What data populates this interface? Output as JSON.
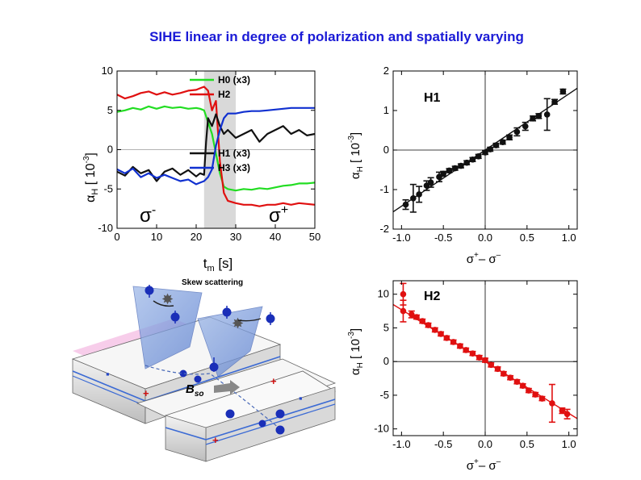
{
  "slide": {
    "title": "SIHE linear in degree of polarization and spatially varying"
  },
  "colors": {
    "H0": "#22dd22",
    "H2": "#e01010",
    "H1": "#111111",
    "H3": "#1030d0",
    "dev_blue": "#2548c8",
    "dev_pink": "#f4b8e0",
    "shade": "#cfcfcf"
  },
  "chart_data": [
    {
      "id": "time-trace",
      "type": "line",
      "xlabel": "t",
      "xlabel_sub": "m",
      "xlabel_unit": " [s]",
      "ylabel": "α",
      "ylabel_sub": "H",
      "ylabel_unit": " [ 10",
      "ylabel_exp": "-3",
      "ylabel_close": "]",
      "xlim": [
        0,
        50
      ],
      "ylim": [
        -10,
        10
      ],
      "xticks": [
        "0",
        "10",
        "20",
        "30",
        "40",
        "50"
      ],
      "yticks": [
        "-10",
        "-5",
        "0",
        "5",
        "10"
      ],
      "shaded_range": [
        22,
        30
      ],
      "annotations": {
        "left": "σ",
        "left_sup": "-",
        "right": "σ",
        "right_sup": "+"
      },
      "legend": [
        "H0 (x3)",
        "H2",
        "H1 (x3)",
        "H3 (x3)"
      ],
      "series": [
        {
          "name": "H0 (x3)",
          "x": [
            0,
            2,
            4,
            6,
            8,
            10,
            12,
            14,
            16,
            18,
            20,
            21,
            22,
            23,
            24,
            25,
            26,
            27,
            28,
            30,
            32,
            34,
            36,
            38,
            40,
            42,
            44,
            46,
            48,
            50
          ],
          "values": [
            4.8,
            5.0,
            5.3,
            5.1,
            5.5,
            5.2,
            5.5,
            5.3,
            5.4,
            5.2,
            5.3,
            5.2,
            5.0,
            3.5,
            2,
            -0.5,
            -3,
            -4.7,
            -5,
            -5.2,
            -5,
            -5.1,
            -4.9,
            -5,
            -4.8,
            -4.6,
            -4.5,
            -4.3,
            -4.3,
            -4.2
          ]
        },
        {
          "name": "H2",
          "x": [
            0,
            2,
            4,
            6,
            8,
            10,
            12,
            14,
            16,
            18,
            20,
            21,
            22,
            23,
            24,
            25,
            26,
            27,
            28,
            30,
            32,
            34,
            36,
            38,
            40,
            42,
            44,
            46,
            48,
            50
          ],
          "values": [
            7.0,
            6.5,
            6.8,
            7.2,
            7.4,
            7.0,
            7.3,
            7.0,
            7.2,
            7.5,
            7.6,
            7.8,
            8.0,
            7.5,
            5,
            6.2,
            -1.5,
            -5.5,
            -6.5,
            -6.8,
            -7,
            -7,
            -7.2,
            -7,
            -7,
            -6.8,
            -7,
            -6.8,
            -6.9,
            -7
          ]
        },
        {
          "name": "H1 (x3)",
          "x": [
            0,
            2,
            4,
            6,
            8,
            10,
            12,
            14,
            16,
            18,
            20,
            21,
            22,
            22.5,
            23,
            24,
            25,
            26,
            27,
            28,
            30,
            32,
            34,
            36,
            38,
            40,
            42,
            44,
            46,
            48,
            50
          ],
          "values": [
            -2.8,
            -3.3,
            -2.2,
            -3.0,
            -2.6,
            -4.0,
            -2.8,
            -2.4,
            -3.2,
            -2.6,
            -3.4,
            -3.0,
            -3.2,
            1.0,
            4.0,
            3.0,
            4.5,
            3.0,
            2.0,
            2.5,
            1.5,
            2.0,
            2.5,
            1.0,
            2.0,
            2.5,
            3.0,
            2.0,
            2.5,
            1.8,
            2.0
          ]
        },
        {
          "name": "H3 (x3)",
          "x": [
            0,
            2,
            4,
            6,
            8,
            10,
            12,
            14,
            16,
            18,
            20,
            21,
            22,
            23,
            24,
            25,
            26,
            27,
            28,
            30,
            32,
            34,
            36,
            38,
            40,
            42,
            44,
            46,
            48,
            50
          ],
          "values": [
            -2.5,
            -3.0,
            -2.4,
            -3.5,
            -3.0,
            -3.6,
            -3.2,
            -3.6,
            -4.0,
            -3.8,
            -4.4,
            -4.2,
            -4.0,
            -3.5,
            -2.5,
            0.5,
            2.5,
            4.0,
            4.6,
            4.6,
            4.8,
            4.9,
            4.9,
            5.0,
            5.1,
            5.2,
            5.3,
            5.3,
            5.3,
            5.3
          ]
        }
      ]
    },
    {
      "id": "h1-polarization",
      "type": "scatter",
      "panel_label": "H1",
      "xlabel": "σ",
      "xlabel_sup1": "+",
      "xlabel_mid": "– σ",
      "xlabel_sup2": "–",
      "ylabel": "α",
      "ylabel_sub": "H",
      "ylabel_unit": " [ 10",
      "ylabel_exp": "-3",
      "ylabel_close": "]",
      "xlim": [
        -1.1,
        1.1
      ],
      "ylim": [
        -2,
        2
      ],
      "xticks": [
        "-1.0",
        "-0.5",
        "0.0",
        "0.5",
        "1.0"
      ],
      "yticks": [
        "-2",
        "-1",
        "0",
        "1",
        "2"
      ],
      "fit_line": {
        "slope": 1.42,
        "intercept": 0
      },
      "x": [
        -0.95,
        -0.86,
        -0.79,
        -0.7,
        -0.65,
        -0.55,
        -0.5,
        -0.43,
        -0.36,
        -0.29,
        -0.22,
        -0.15,
        -0.08,
        0.0,
        0.06,
        0.13,
        0.21,
        0.29,
        0.38,
        0.48,
        0.57,
        0.64,
        0.74,
        0.83,
        0.93
      ],
      "y": [
        -1.38,
        -1.22,
        -1.12,
        -0.9,
        -0.82,
        -0.68,
        -0.6,
        -0.52,
        -0.46,
        -0.4,
        -0.32,
        -0.24,
        -0.16,
        -0.06,
        0.02,
        0.12,
        0.2,
        0.32,
        0.46,
        0.6,
        0.8,
        0.86,
        0.9,
        1.22,
        1.48
      ],
      "err": [
        0.12,
        0.35,
        0.2,
        0.12,
        0.12,
        0.12,
        0.06,
        0.05,
        0.05,
        0.05,
        0.05,
        0.05,
        0.05,
        0.05,
        0.05,
        0.05,
        0.05,
        0.06,
        0.1,
        0.1,
        0.06,
        0.06,
        0.4,
        0.06,
        0.06
      ]
    },
    {
      "id": "h2-polarization",
      "type": "scatter",
      "panel_label": "H2",
      "xlabel": "σ",
      "xlabel_sup1": "+",
      "xlabel_mid": "– σ",
      "xlabel_sup2": "–",
      "ylabel": "α",
      "ylabel_sub": "H",
      "ylabel_unit": " [ 10",
      "ylabel_exp": "-3",
      "ylabel_close": "]",
      "xlim": [
        -1.1,
        1.1
      ],
      "ylim": [
        -11,
        12
      ],
      "xticks": [
        "-1.0",
        "-0.5",
        "0.0",
        "0.5",
        "1.0"
      ],
      "yticks": [
        "-10",
        "-5",
        "0",
        "5",
        "10"
      ],
      "fit_line": {
        "slope": -7.7,
        "intercept": 0
      },
      "x": [
        -0.98,
        -0.98,
        -0.88,
        -0.82,
        -0.75,
        -0.68,
        -0.6,
        -0.53,
        -0.46,
        -0.38,
        -0.3,
        -0.23,
        -0.15,
        -0.07,
        0.0,
        0.07,
        0.15,
        0.22,
        0.3,
        0.38,
        0.45,
        0.52,
        0.6,
        0.68,
        0.8,
        0.92,
        0.98
      ],
      "y": [
        10,
        7.5,
        7,
        6.6,
        6,
        5.4,
        4.7,
        4.1,
        3.5,
        2.9,
        2.3,
        1.7,
        1.2,
        0.6,
        0.2,
        -0.5,
        -1.1,
        -1.8,
        -2.4,
        -3,
        -3.6,
        -4.3,
        -4.9,
        -5.5,
        -6.2,
        -7.3,
        -7.8
      ],
      "err": [
        1.6,
        1.6,
        0.5,
        0.3,
        0.3,
        0.3,
        0.3,
        0.3,
        0.3,
        0.3,
        0.3,
        0.3,
        0.3,
        0.3,
        0.3,
        0.3,
        0.3,
        0.3,
        0.3,
        0.3,
        0.3,
        0.3,
        0.3,
        0.3,
        2.8,
        0.4,
        0.7
      ]
    }
  ],
  "schematic": {
    "label_skew": "Skew scattering",
    "label_b": "B",
    "label_b_sub": "so"
  }
}
